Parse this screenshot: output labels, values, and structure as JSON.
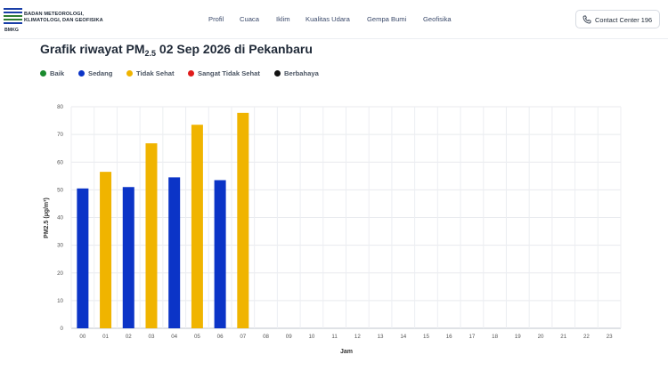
{
  "header": {
    "org_line1": "BADAN METEOROLOGI,",
    "org_line2": "KLIMATOLOGI, DAN GEOFISIKA",
    "logo_text": "BMKG",
    "nav": [
      "Profil",
      "Cuaca",
      "Iklim",
      "Kualitas Udara",
      "Gempa Bumi",
      "Geofisika"
    ],
    "contact_label": "Contact Center 196",
    "contact_icon": "phone-icon"
  },
  "page": {
    "title_prefix": "Grafik riwayat PM",
    "title_sub": "2.5",
    "title_suffix": " 02 Sep 2026 di Pekanbaru"
  },
  "legend": [
    {
      "label": "Baik",
      "color": "#1a8a2e"
    },
    {
      "label": "Sedang",
      "color": "#0b34c7"
    },
    {
      "label": "Tidak Sehat",
      "color": "#f0b400"
    },
    {
      "label": "Sangat Tidak Sehat",
      "color": "#e01b1b"
    },
    {
      "label": "Berbahaya",
      "color": "#111111"
    }
  ],
  "chart_data": {
    "type": "bar",
    "categories": [
      "00",
      "01",
      "02",
      "03",
      "04",
      "05",
      "06",
      "07",
      "08",
      "09",
      "10",
      "11",
      "12",
      "13",
      "14",
      "15",
      "16",
      "17",
      "18",
      "19",
      "20",
      "21",
      "22",
      "23"
    ],
    "values": [
      50.5,
      56.5,
      51,
      66.8,
      54.5,
      73.5,
      53.5,
      77.8,
      null,
      null,
      null,
      null,
      null,
      null,
      null,
      null,
      null,
      null,
      null,
      null,
      null,
      null,
      null,
      null
    ],
    "value_category": [
      "Sedang",
      "Tidak Sehat",
      "Sedang",
      "Tidak Sehat",
      "Sedang",
      "Tidak Sehat",
      "Sedang",
      "Tidak Sehat"
    ],
    "xlabel": "Jam",
    "ylabel": "PM2.5 (µg/m³)",
    "ylim": [
      0,
      80
    ],
    "yticks": [
      0,
      10,
      20,
      30,
      40,
      50,
      60,
      70,
      80
    ],
    "grid": true
  }
}
